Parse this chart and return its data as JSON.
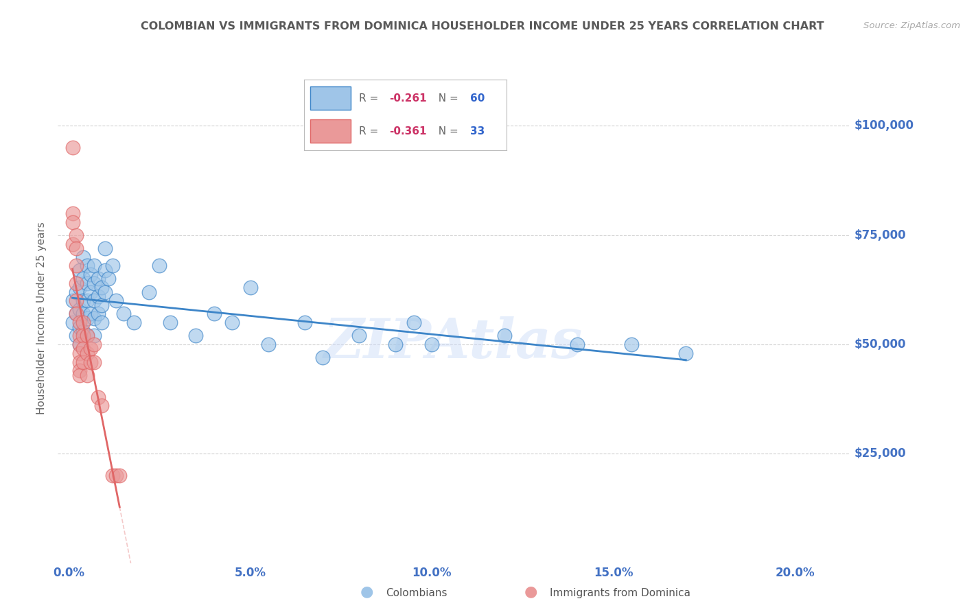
{
  "title": "COLOMBIAN VS IMMIGRANTS FROM DOMINICA HOUSEHOLDER INCOME UNDER 25 YEARS CORRELATION CHART",
  "source": "Source: ZipAtlas.com",
  "ylabel": "Householder Income Under 25 years",
  "ytick_labels": [
    "$25,000",
    "$50,000",
    "$75,000",
    "$100,000"
  ],
  "ytick_vals": [
    25000,
    50000,
    75000,
    100000
  ],
  "xtick_labels": [
    "0.0%",
    "5.0%",
    "10.0%",
    "15.0%",
    "20.0%"
  ],
  "xtick_vals": [
    0.0,
    0.05,
    0.1,
    0.15,
    0.2
  ],
  "ymin": 0,
  "ymax": 112000,
  "xmin": -0.003,
  "xmax": 0.215,
  "blue_color": "#9fc5e8",
  "pink_color": "#ea9999",
  "blue_line_color": "#3d85c8",
  "pink_line_color": "#e06666",
  "pink_dash_color": "#e06666",
  "grid_color": "#c0c0c0",
  "title_color": "#595959",
  "axis_label_color": "#4472c4",
  "tick_color": "#4472c4",
  "watermark": "ZIPAtlas",
  "watermark_color": "#c9daf8",
  "col_R": "-0.261",
  "col_N": "60",
  "dom_R": "-0.361",
  "dom_N": "33",
  "colombians_x": [
    0.001,
    0.001,
    0.002,
    0.002,
    0.002,
    0.003,
    0.003,
    0.003,
    0.003,
    0.003,
    0.004,
    0.004,
    0.004,
    0.004,
    0.004,
    0.005,
    0.005,
    0.005,
    0.005,
    0.005,
    0.006,
    0.006,
    0.006,
    0.007,
    0.007,
    0.007,
    0.007,
    0.007,
    0.008,
    0.008,
    0.008,
    0.009,
    0.009,
    0.009,
    0.01,
    0.01,
    0.01,
    0.011,
    0.012,
    0.013,
    0.015,
    0.018,
    0.022,
    0.025,
    0.028,
    0.035,
    0.04,
    0.045,
    0.05,
    0.055,
    0.065,
    0.07,
    0.08,
    0.09,
    0.095,
    0.1,
    0.12,
    0.14,
    0.155,
    0.17
  ],
  "colombians_y": [
    60000,
    55000,
    62000,
    57000,
    52000,
    67000,
    63000,
    58000,
    54000,
    50000,
    70000,
    65000,
    60000,
    57000,
    53000,
    68000,
    64000,
    60000,
    56000,
    52000,
    66000,
    62000,
    57000,
    68000,
    64000,
    60000,
    56000,
    52000,
    65000,
    61000,
    57000,
    63000,
    59000,
    55000,
    72000,
    67000,
    62000,
    65000,
    68000,
    60000,
    57000,
    55000,
    62000,
    68000,
    55000,
    52000,
    57000,
    55000,
    63000,
    50000,
    55000,
    47000,
    52000,
    50000,
    55000,
    50000,
    52000,
    50000,
    50000,
    48000
  ],
  "dominica_x": [
    0.001,
    0.001,
    0.001,
    0.001,
    0.002,
    0.002,
    0.002,
    0.002,
    0.002,
    0.002,
    0.003,
    0.003,
    0.003,
    0.003,
    0.003,
    0.003,
    0.003,
    0.004,
    0.004,
    0.004,
    0.004,
    0.005,
    0.005,
    0.005,
    0.006,
    0.006,
    0.007,
    0.007,
    0.008,
    0.009,
    0.012,
    0.013,
    0.014
  ],
  "dominica_y": [
    95000,
    80000,
    78000,
    73000,
    75000,
    72000,
    68000,
    64000,
    60000,
    57000,
    55000,
    52000,
    50000,
    48000,
    46000,
    44000,
    43000,
    55000,
    52000,
    49000,
    46000,
    52000,
    48000,
    43000,
    49000,
    46000,
    50000,
    46000,
    38000,
    36000,
    20000,
    20000,
    20000
  ]
}
